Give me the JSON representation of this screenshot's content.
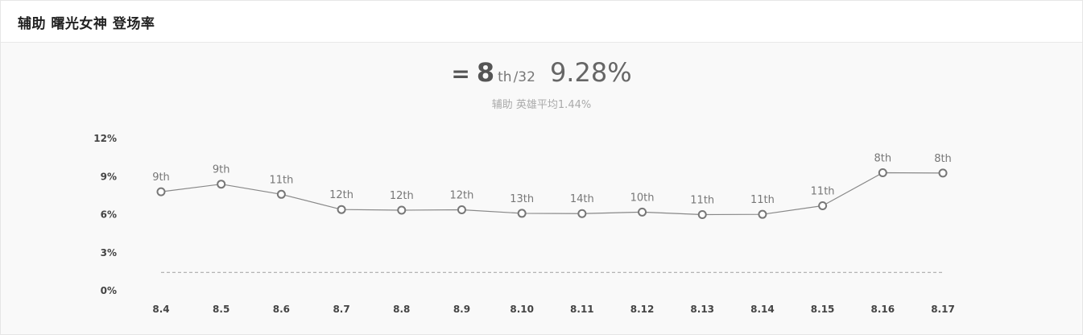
{
  "header": {
    "title": "辅助 曙光女神 登场率"
  },
  "summary": {
    "trend_symbol": "=",
    "rank": "8",
    "rank_suffix": "th",
    "rank_total": "/32",
    "rate": "9.28%",
    "avg_label": "辅助 英雄平均1.44%"
  },
  "chart_data": {
    "type": "line",
    "title": "",
    "xlabel": "",
    "ylabel": "",
    "categories": [
      "8.4",
      "8.5",
      "8.6",
      "8.7",
      "8.8",
      "8.9",
      "8.10",
      "8.11",
      "8.12",
      "8.13",
      "8.14",
      "8.15",
      "8.16",
      "8.17"
    ],
    "series": [
      {
        "values": [
          7.8,
          8.4,
          7.6,
          6.4,
          6.35,
          6.38,
          6.1,
          6.08,
          6.2,
          6.0,
          6.02,
          6.7,
          9.3,
          9.28
        ],
        "point_labels": [
          "9th",
          "9th",
          "11th",
          "12th",
          "12th",
          "12th",
          "13th",
          "14th",
          "10th",
          "11th",
          "11th",
          "11th",
          "8th",
          "8th"
        ]
      }
    ],
    "reference_line": {
      "value": 1.44,
      "style": "dashed"
    },
    "ylim": [
      0,
      12
    ],
    "yticks": [
      0,
      3,
      6,
      9,
      12
    ],
    "ytick_labels": [
      "0%",
      "3%",
      "6%",
      "9%",
      "12%"
    ],
    "grid": false,
    "legend": "none",
    "colors": {
      "line": "#888888",
      "marker_stroke": "#777777",
      "marker_fill": "#ffffff",
      "reference": "#aaaaaa"
    }
  }
}
